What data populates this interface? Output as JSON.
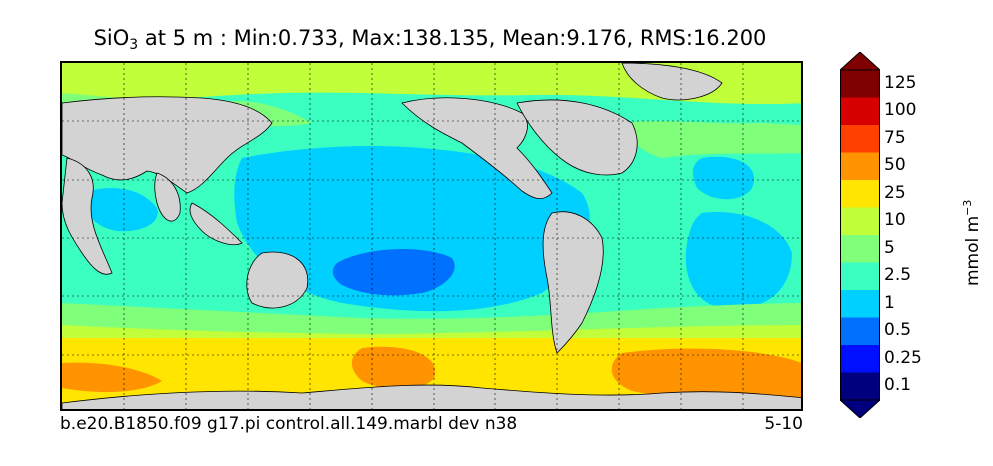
{
  "title": {
    "var_main": "SiO",
    "var_sub": "3",
    "rest": " at 5 m : Min:0.733, Max:138.135, Mean:9.176, RMS:16.200"
  },
  "footer": {
    "run_name": "b.e20.B1850.f09 g17.pi control.all.149.marbl dev n38",
    "years": "5-10"
  },
  "colorbar": {
    "units_main": "mmol m",
    "units_exp": "−3",
    "levels": [
      "0.1",
      "0.25",
      "0.5",
      "1",
      "2.5",
      "5",
      "10",
      "25",
      "50",
      "75",
      "100",
      "125"
    ],
    "colors": [
      "#00007f",
      "#0010ff",
      "#0070ff",
      "#00d0ff",
      "#3affc0",
      "#7fff7a",
      "#c0ff3a",
      "#ffe500",
      "#ff9400",
      "#ff4000",
      "#d60000",
      "#7f0000"
    ]
  },
  "map": {
    "land_color": "#d3d3d3",
    "ocean_base_color": "#3affc0"
  }
}
